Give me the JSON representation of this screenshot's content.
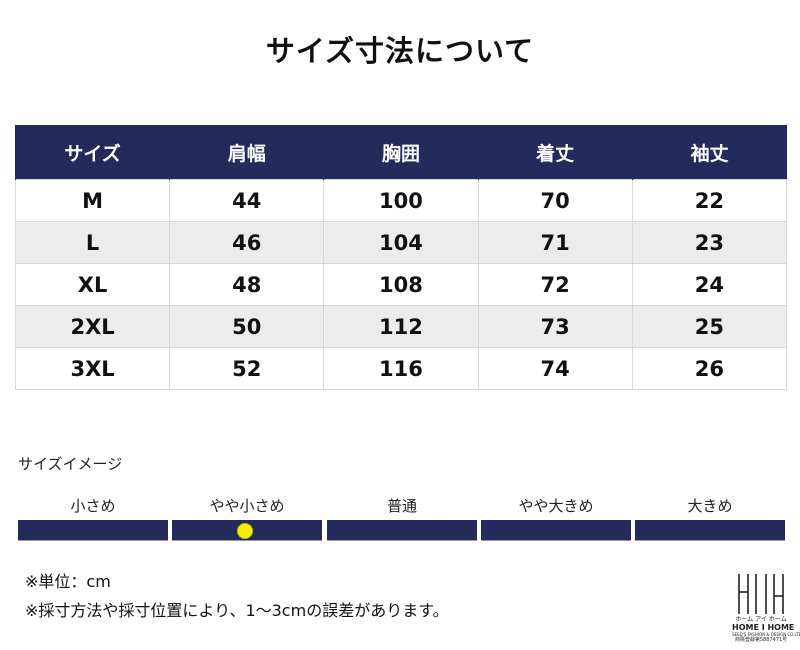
{
  "page": {
    "title": "サイズ寸法について"
  },
  "table": {
    "headers": [
      "サイズ",
      "肩幅",
      "胸囲",
      "着丈",
      "袖丈"
    ],
    "rows": [
      [
        "M",
        "44",
        "100",
        "70",
        "22"
      ],
      [
        "L",
        "46",
        "104",
        "71",
        "23"
      ],
      [
        "XL",
        "48",
        "108",
        "72",
        "24"
      ],
      [
        "2XL",
        "50",
        "112",
        "73",
        "25"
      ],
      [
        "3XL",
        "52",
        "116",
        "74",
        "26"
      ]
    ]
  },
  "size_image": {
    "heading": "サイズイメージ",
    "scale": [
      "小さめ",
      "やや小さめ",
      "普通",
      "やや大きめ",
      "大きめ"
    ],
    "selected_index": 1,
    "selected_position_fraction": 0.47,
    "marker_color": "#f6ef00",
    "bar_color": "#232a5c"
  },
  "notes": {
    "unit": "※単位：cm",
    "measurement": "※採寸方法や採寸位置により、1～3cmの誤差があります。"
  },
  "logo": {
    "line1": "ホーム アイ ホーム",
    "line2": "HOME I HOME",
    "line3": "SEED'S FASHION & DESIGN CO.LTD",
    "line4": "商標登録第5887471号"
  },
  "colors": {
    "header_bg": "#232a5c",
    "stripe": "#ececec"
  }
}
